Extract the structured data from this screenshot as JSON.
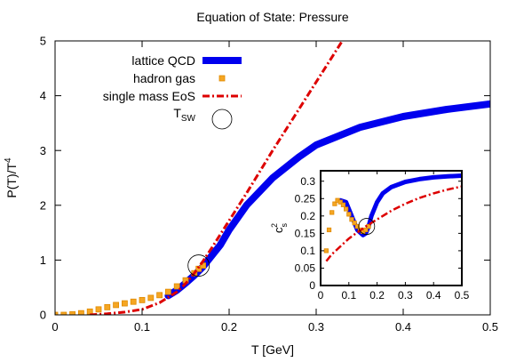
{
  "chart_data": [
    {
      "type": "line",
      "title": "Equation of State: Pressure",
      "xlabel": "T [GeV]",
      "ylabel": "P(T)/T",
      "ylabel_sup": "4",
      "xlim": [
        0,
        0.5
      ],
      "ylim": [
        0,
        5
      ],
      "xticks": [
        {
          "v": 0,
          "label": "0"
        },
        {
          "v": 0.1,
          "label": "0.1"
        },
        {
          "v": 0.2,
          "label": "0.2"
        },
        {
          "v": 0.3,
          "label": "0.3"
        },
        {
          "v": 0.4,
          "label": "0.4"
        },
        {
          "v": 0.5,
          "label": "0.5"
        }
      ],
      "yticks": [
        {
          "v": 0,
          "label": "0"
        },
        {
          "v": 1,
          "label": "1"
        },
        {
          "v": 2,
          "label": "2"
        },
        {
          "v": 3,
          "label": "3"
        },
        {
          "v": 4,
          "label": "4"
        },
        {
          "v": 5,
          "label": "5"
        }
      ],
      "legend_position": "top-left",
      "series": [
        {
          "name": "lattice QCD",
          "style": "thick-line",
          "color": "#0000ee",
          "x": [
            0.13,
            0.14,
            0.15,
            0.16,
            0.17,
            0.18,
            0.19,
            0.2,
            0.22,
            0.25,
            0.28,
            0.3,
            0.35,
            0.4,
            0.45,
            0.5
          ],
          "y": [
            0.35,
            0.45,
            0.58,
            0.72,
            0.88,
            1.08,
            1.28,
            1.55,
            2.0,
            2.5,
            2.88,
            3.1,
            3.42,
            3.62,
            3.75,
            3.85
          ]
        },
        {
          "name": "hadron gas",
          "style": "squares",
          "color": "#f5a623",
          "x": [
            0.0,
            0.01,
            0.02,
            0.03,
            0.04,
            0.05,
            0.06,
            0.07,
            0.08,
            0.09,
            0.1,
            0.11,
            0.12,
            0.13,
            0.14,
            0.15,
            0.16,
            0.165,
            0.17
          ],
          "y": [
            0.0,
            0.0,
            0.01,
            0.03,
            0.06,
            0.1,
            0.14,
            0.18,
            0.21,
            0.24,
            0.27,
            0.31,
            0.36,
            0.42,
            0.52,
            0.63,
            0.76,
            0.84,
            0.9
          ]
        },
        {
          "name": "single mass EoS",
          "style": "dash-dot",
          "color": "#dd0000",
          "x": [
            0.04,
            0.06,
            0.08,
            0.1,
            0.12,
            0.14,
            0.15,
            0.16,
            0.17,
            0.18,
            0.2,
            0.22,
            0.25,
            0.28,
            0.3,
            0.32,
            0.33
          ],
          "y": [
            0.0,
            0.02,
            0.05,
            0.1,
            0.22,
            0.42,
            0.57,
            0.76,
            0.98,
            1.22,
            1.72,
            2.22,
            3.0,
            3.75,
            4.25,
            4.75,
            5.0
          ]
        },
        {
          "name": "T",
          "name_sub": "SW",
          "style": "open-circle",
          "color": "#000000",
          "x": [
            0.165
          ],
          "y": [
            0.9
          ]
        }
      ]
    },
    {
      "type": "line",
      "title": "",
      "xlabel": "",
      "ylabel": "c",
      "ylabel_sup": "2",
      "ylabel_sub": "s",
      "xlim": [
        0,
        0.5
      ],
      "ylim": [
        0,
        0.33
      ],
      "xticks": [
        {
          "v": 0,
          "label": "0"
        },
        {
          "v": 0.1,
          "label": "0.1"
        },
        {
          "v": 0.2,
          "label": "0.2"
        },
        {
          "v": 0.3,
          "label": "0.3"
        },
        {
          "v": 0.4,
          "label": "0.4"
        },
        {
          "v": 0.5,
          "label": "0.5"
        }
      ],
      "yticks": [
        {
          "v": 0,
          "label": "0"
        },
        {
          "v": 0.05,
          "label": "0.05"
        },
        {
          "v": 0.1,
          "label": "0.1"
        },
        {
          "v": 0.15,
          "label": "0.15"
        },
        {
          "v": 0.2,
          "label": "0.2"
        },
        {
          "v": 0.25,
          "label": "0.25"
        },
        {
          "v": 0.3,
          "label": "0.3"
        }
      ],
      "series": [
        {
          "name": "lattice QCD",
          "style": "thick-line",
          "color": "#0000ee",
          "x": [
            0.07,
            0.09,
            0.11,
            0.13,
            0.15,
            0.16,
            0.17,
            0.18,
            0.2,
            0.22,
            0.25,
            0.3,
            0.35,
            0.4,
            0.45,
            0.5
          ],
          "y": [
            0.245,
            0.24,
            0.2,
            0.16,
            0.145,
            0.15,
            0.17,
            0.2,
            0.24,
            0.265,
            0.283,
            0.298,
            0.306,
            0.311,
            0.314,
            0.316
          ]
        },
        {
          "name": "hadron gas",
          "style": "squares",
          "color": "#f5a623",
          "x": [
            0.02,
            0.03,
            0.04,
            0.05,
            0.06,
            0.07,
            0.08,
            0.09,
            0.1,
            0.11,
            0.12,
            0.13,
            0.14,
            0.15,
            0.16,
            0.17
          ],
          "y": [
            0.1,
            0.16,
            0.21,
            0.235,
            0.245,
            0.24,
            0.232,
            0.22,
            0.205,
            0.19,
            0.18,
            0.17,
            0.16,
            0.155,
            0.16,
            0.17
          ]
        },
        {
          "name": "single mass EoS",
          "style": "dash-dot",
          "color": "#dd0000",
          "x": [
            0.02,
            0.04,
            0.06,
            0.08,
            0.1,
            0.12,
            0.14,
            0.16,
            0.18,
            0.2,
            0.25,
            0.3,
            0.35,
            0.4,
            0.45,
            0.5
          ],
          "y": [
            0.07,
            0.09,
            0.105,
            0.12,
            0.135,
            0.147,
            0.158,
            0.17,
            0.18,
            0.19,
            0.215,
            0.235,
            0.252,
            0.265,
            0.276,
            0.285
          ]
        },
        {
          "name": "T",
          "name_sub": "SW",
          "style": "open-circle",
          "color": "#000000",
          "x": [
            0.163
          ],
          "y": [
            0.17
          ]
        }
      ]
    }
  ]
}
